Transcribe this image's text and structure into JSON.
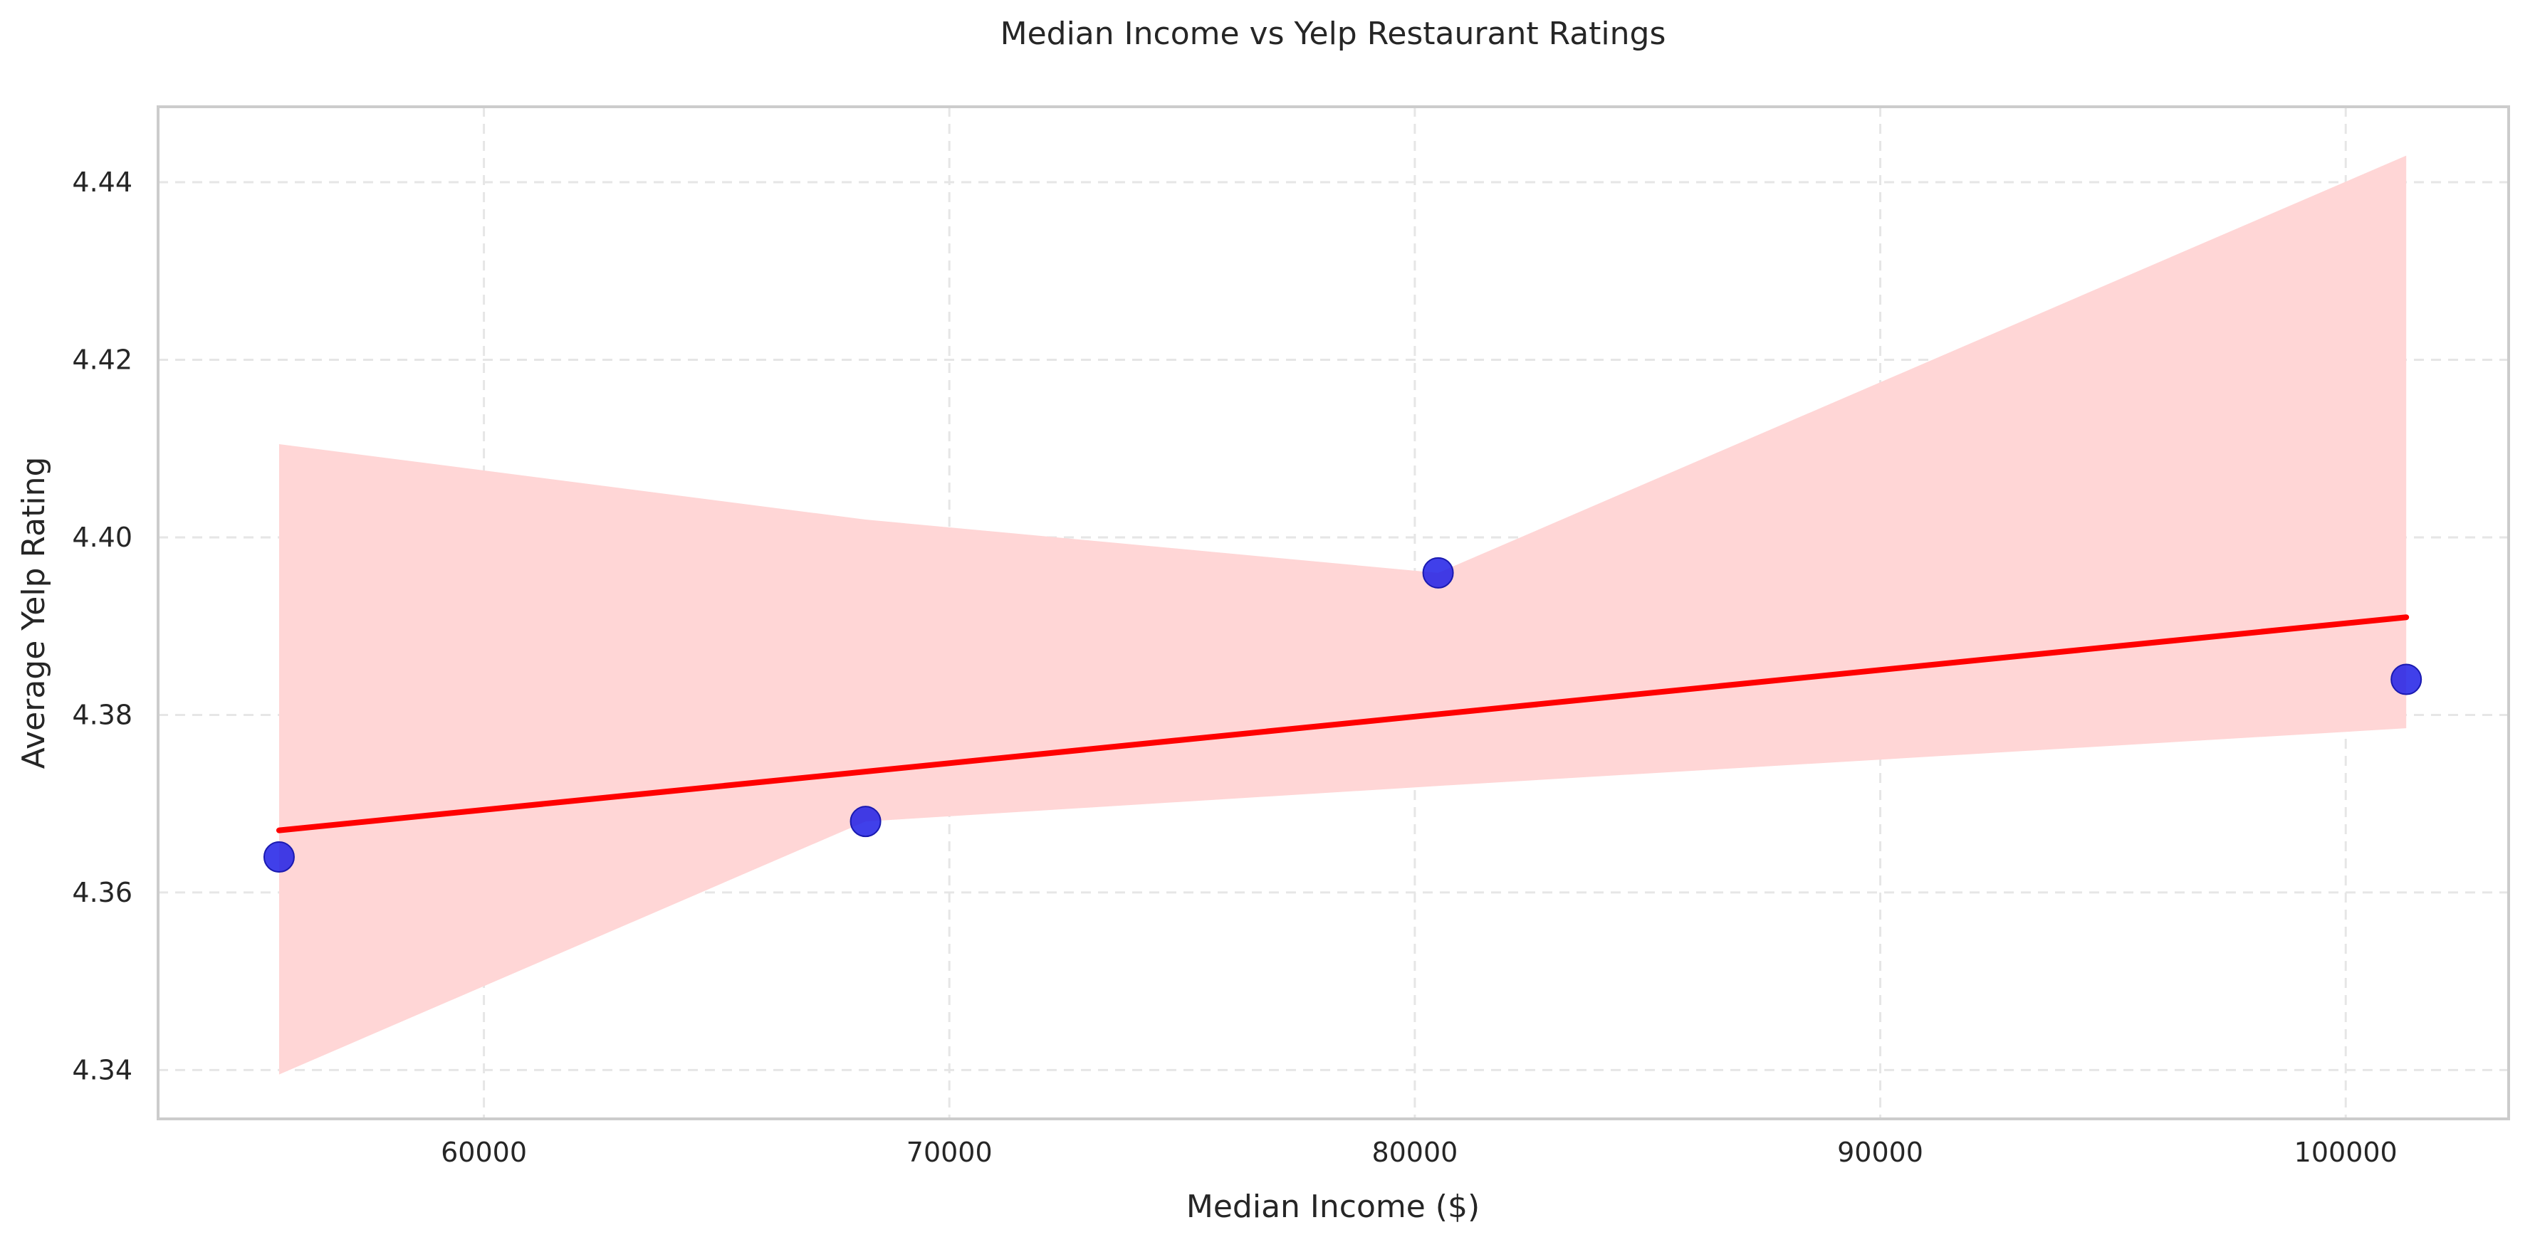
{
  "chart_data": {
    "type": "scatter",
    "title": "Median Income vs Yelp Restaurant Ratings",
    "xlabel": "Median Income ($)",
    "ylabel": "Average Yelp Rating",
    "xlim": [
      53000,
      103500
    ],
    "ylim": [
      4.3345,
      4.4485
    ],
    "x_ticks": [
      60000,
      70000,
      80000,
      90000,
      100000
    ],
    "x_tick_labels": [
      "60000",
      "70000",
      "80000",
      "90000",
      "100000"
    ],
    "y_ticks": [
      4.34,
      4.36,
      4.38,
      4.4,
      4.42,
      4.44
    ],
    "y_tick_labels": [
      "4.34",
      "4.36",
      "4.38",
      "4.40",
      "4.42",
      "4.44"
    ],
    "grid": true,
    "points": {
      "x": [
        55600,
        68200,
        80500,
        101300
      ],
      "y": [
        4.364,
        4.368,
        4.396,
        4.384
      ],
      "color": "#1f1fe6"
    },
    "regression_line": {
      "x": [
        55600,
        101300
      ],
      "y": [
        4.367,
        4.391
      ],
      "color": "#ff0000"
    },
    "confidence_band": {
      "x": [
        55600,
        68200,
        80500,
        101300
      ],
      "lower": [
        4.3395,
        4.368,
        4.372,
        4.3785
      ],
      "upper": [
        4.4105,
        4.402,
        4.396,
        4.443
      ],
      "color": "#ffd6d6"
    }
  }
}
